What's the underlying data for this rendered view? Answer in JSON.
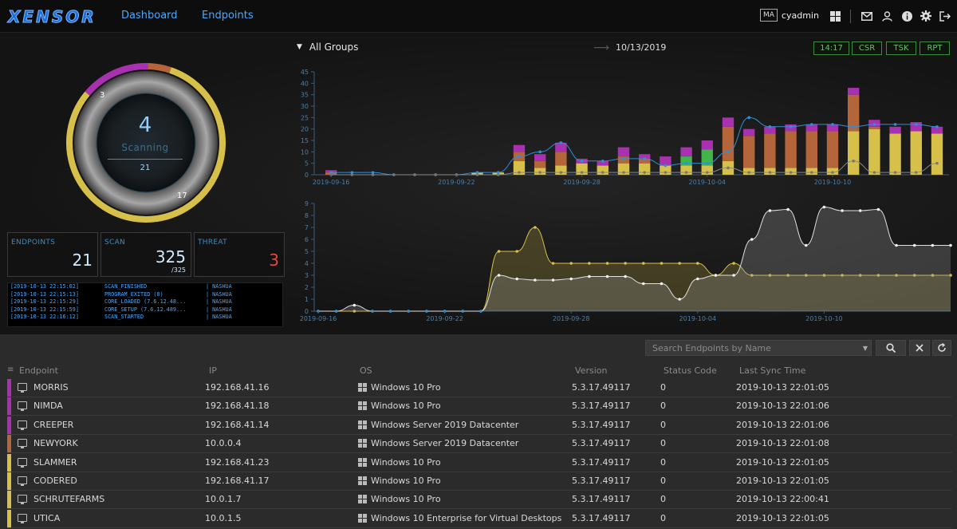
{
  "app": {
    "logo_text": "XENSOR",
    "nav": [
      "Dashboard",
      "Endpoints"
    ],
    "user_badge": "MA",
    "user_name": "cyadmin"
  },
  "gauge": {
    "count": "4",
    "status": "Scanning",
    "total": "21",
    "label_top": "3",
    "label_bottom": "17",
    "segments": [
      {
        "value": 3,
        "color": "#a930b0"
      },
      {
        "value": 1,
        "color": "#b4663a"
      },
      {
        "value": 17,
        "color": "#d7c04a"
      }
    ]
  },
  "stats": [
    {
      "label": "ENDPOINTS",
      "value": "21",
      "sub": "",
      "color": "#cfeaff"
    },
    {
      "label": "SCAN",
      "value": "325",
      "sub": "/325",
      "color": "#cfeaff"
    },
    {
      "label": "THREAT",
      "value": "3",
      "sub": "",
      "color": "#e8473a"
    }
  ],
  "log": [
    {
      "ts": "[2019-10-13 22:15:02]",
      "event": "SCAN_FINISHED",
      "host": "| NASHUA"
    },
    {
      "ts": "[2019-10-13 22:15:13]",
      "event": "PROGRAM_EXITED (0)",
      "host": "| NASHUA"
    },
    {
      "ts": "[2019-10-13 22:15:29]",
      "event": "CORE_LOADED (7.6.12.48...",
      "host": "| NASHUA"
    },
    {
      "ts": "[2019-10-13 22:15:59]",
      "event": "CORE_SETUP (7.6.12.489...",
      "host": "| NASHUA"
    },
    {
      "ts": "[2019-10-13 22:16:12]",
      "event": "SCAN_STARTED",
      "host": "| NASHUA"
    }
  ],
  "filter": {
    "group": "All Groups",
    "date": "10/13/2019",
    "buttons": [
      "14:17",
      "CSR",
      "TSK",
      "RPT"
    ]
  },
  "chart_data": [
    {
      "type": "bar",
      "ylim": [
        0,
        45
      ],
      "yticks": [
        0,
        5,
        10,
        15,
        20,
        25,
        30,
        35,
        40,
        45
      ],
      "xticks": [
        "2019-09-16",
        "2019-09-22",
        "2019-09-28",
        "2019-10-04",
        "2019-10-10"
      ],
      "series": [
        {
          "color": "#d7c04a",
          "values": [
            0,
            0,
            0,
            0,
            0,
            0,
            0,
            1,
            1,
            6,
            3,
            4,
            5,
            4,
            5,
            5,
            4,
            4,
            4,
            6,
            3,
            3,
            3,
            3,
            3,
            19,
            20,
            18,
            19,
            18
          ]
        },
        {
          "color": "#42b54a",
          "values": [
            0,
            0,
            0,
            0,
            0,
            0,
            0,
            0,
            0,
            0,
            0,
            0,
            0,
            0,
            0,
            0,
            0,
            4,
            7,
            0,
            0,
            0,
            0,
            0,
            0,
            0,
            0,
            0,
            0,
            0
          ]
        },
        {
          "color": "#b4663a",
          "values": [
            1,
            0,
            0,
            0,
            0,
            0,
            0,
            0,
            0,
            4,
            3,
            6,
            0,
            0,
            3,
            2,
            0,
            0,
            0,
            15,
            14,
            15,
            16,
            16,
            16,
            16,
            1,
            0,
            0,
            0
          ]
        },
        {
          "color": "#a930b0",
          "values": [
            1,
            0,
            0,
            0,
            0,
            0,
            0,
            0,
            0,
            3,
            3,
            4,
            2,
            2,
            4,
            2,
            4,
            4,
            4,
            4,
            3,
            3,
            3,
            3,
            3,
            3,
            3,
            3,
            4,
            3
          ]
        }
      ],
      "line_total": [
        1,
        1,
        1,
        0,
        0,
        0,
        0,
        1,
        1,
        8,
        10,
        14,
        6,
        6,
        7,
        7,
        4,
        5,
        5,
        10,
        25,
        21,
        21,
        22,
        22,
        21,
        22,
        22,
        22,
        21
      ],
      "line_threat": [
        0,
        0,
        0,
        0,
        0,
        0,
        0,
        0,
        0,
        1,
        1,
        1,
        1,
        1,
        1,
        1,
        1,
        1,
        1,
        3,
        1,
        1,
        1,
        1,
        1,
        6,
        1,
        1,
        1,
        5
      ]
    },
    {
      "type": "area",
      "ylim": [
        0,
        9
      ],
      "yticks": [
        0,
        1,
        2,
        3,
        4,
        5,
        6,
        7,
        8,
        9
      ],
      "xticks": [
        "2019-09-16",
        "2019-09-22",
        "2019-09-28",
        "2019-10-04",
        "2019-10-10"
      ],
      "series": [
        {
          "color": "#d7c04a",
          "values": [
            0,
            0,
            0,
            0,
            0,
            0,
            0,
            0,
            0,
            0,
            5,
            5,
            7,
            4,
            4,
            4,
            4,
            4,
            4,
            4,
            4,
            4,
            3,
            4,
            3,
            3,
            3,
            3,
            3,
            3,
            3,
            3,
            3,
            3,
            3,
            3
          ]
        },
        {
          "color": "#e0e0e0",
          "values": [
            0,
            0,
            0.5,
            0,
            0,
            0,
            0,
            0,
            0,
            0,
            3,
            2.7,
            2.6,
            2.6,
            2.7,
            2.9,
            2.9,
            2.9,
            2.3,
            2.3,
            1,
            2.7,
            3,
            3,
            6,
            8.4,
            8.5,
            5.5,
            8.7,
            8.4,
            8.4,
            8.5,
            5.5,
            5.5,
            5.5,
            5.5
          ]
        }
      ]
    }
  ],
  "search": {
    "placeholder": "Search Endpoints by Name"
  },
  "table": {
    "headers": [
      "Endpoint",
      "IP",
      "OS",
      "Version",
      "Status Code",
      "Last Sync Time"
    ],
    "rows": [
      {
        "name": "MORRIS",
        "ip": "192.168.41.16",
        "os": "Windows 10 Pro",
        "version": "5.3.17.49117",
        "status": "0",
        "sync": "2019-10-13 22:01:05",
        "color": "#a930b0"
      },
      {
        "name": "NIMDA",
        "ip": "192.168.41.18",
        "os": "Windows 10 Pro",
        "version": "5.3.17.49117",
        "status": "0",
        "sync": "2019-10-13 22:01:06",
        "color": "#a930b0"
      },
      {
        "name": "CREEPER",
        "ip": "192.168.41.14",
        "os": "Windows Server 2019 Datacenter",
        "version": "5.3.17.49117",
        "status": "0",
        "sync": "2019-10-13 22:01:06",
        "color": "#a930b0"
      },
      {
        "name": "NEWYORK",
        "ip": "10.0.0.4",
        "os": "Windows Server 2019 Datacenter",
        "version": "5.3.17.49117",
        "status": "0",
        "sync": "2019-10-13 22:01:08",
        "color": "#b4663a"
      },
      {
        "name": "SLAMMER",
        "ip": "192.168.41.23",
        "os": "Windows 10 Pro",
        "version": "5.3.17.49117",
        "status": "0",
        "sync": "2019-10-13 22:01:05",
        "color": "#d7c04a"
      },
      {
        "name": "CODERED",
        "ip": "192.168.41.17",
        "os": "Windows 10 Pro",
        "version": "5.3.17.49117",
        "status": "0",
        "sync": "2019-10-13 22:01:05",
        "color": "#d7c04a"
      },
      {
        "name": "SCHRUTEFARMS",
        "ip": "10.0.1.7",
        "os": "Windows 10 Pro",
        "version": "5.3.17.49117",
        "status": "0",
        "sync": "2019-10-13 22:00:41",
        "color": "#d7c04a"
      },
      {
        "name": "UTICA",
        "ip": "10.0.1.5",
        "os": "Windows 10 Enterprise for Virtual Desktops",
        "version": "5.3.17.49117",
        "status": "0",
        "sync": "2019-10-13 22:01:05",
        "color": "#d7c04a"
      }
    ]
  }
}
